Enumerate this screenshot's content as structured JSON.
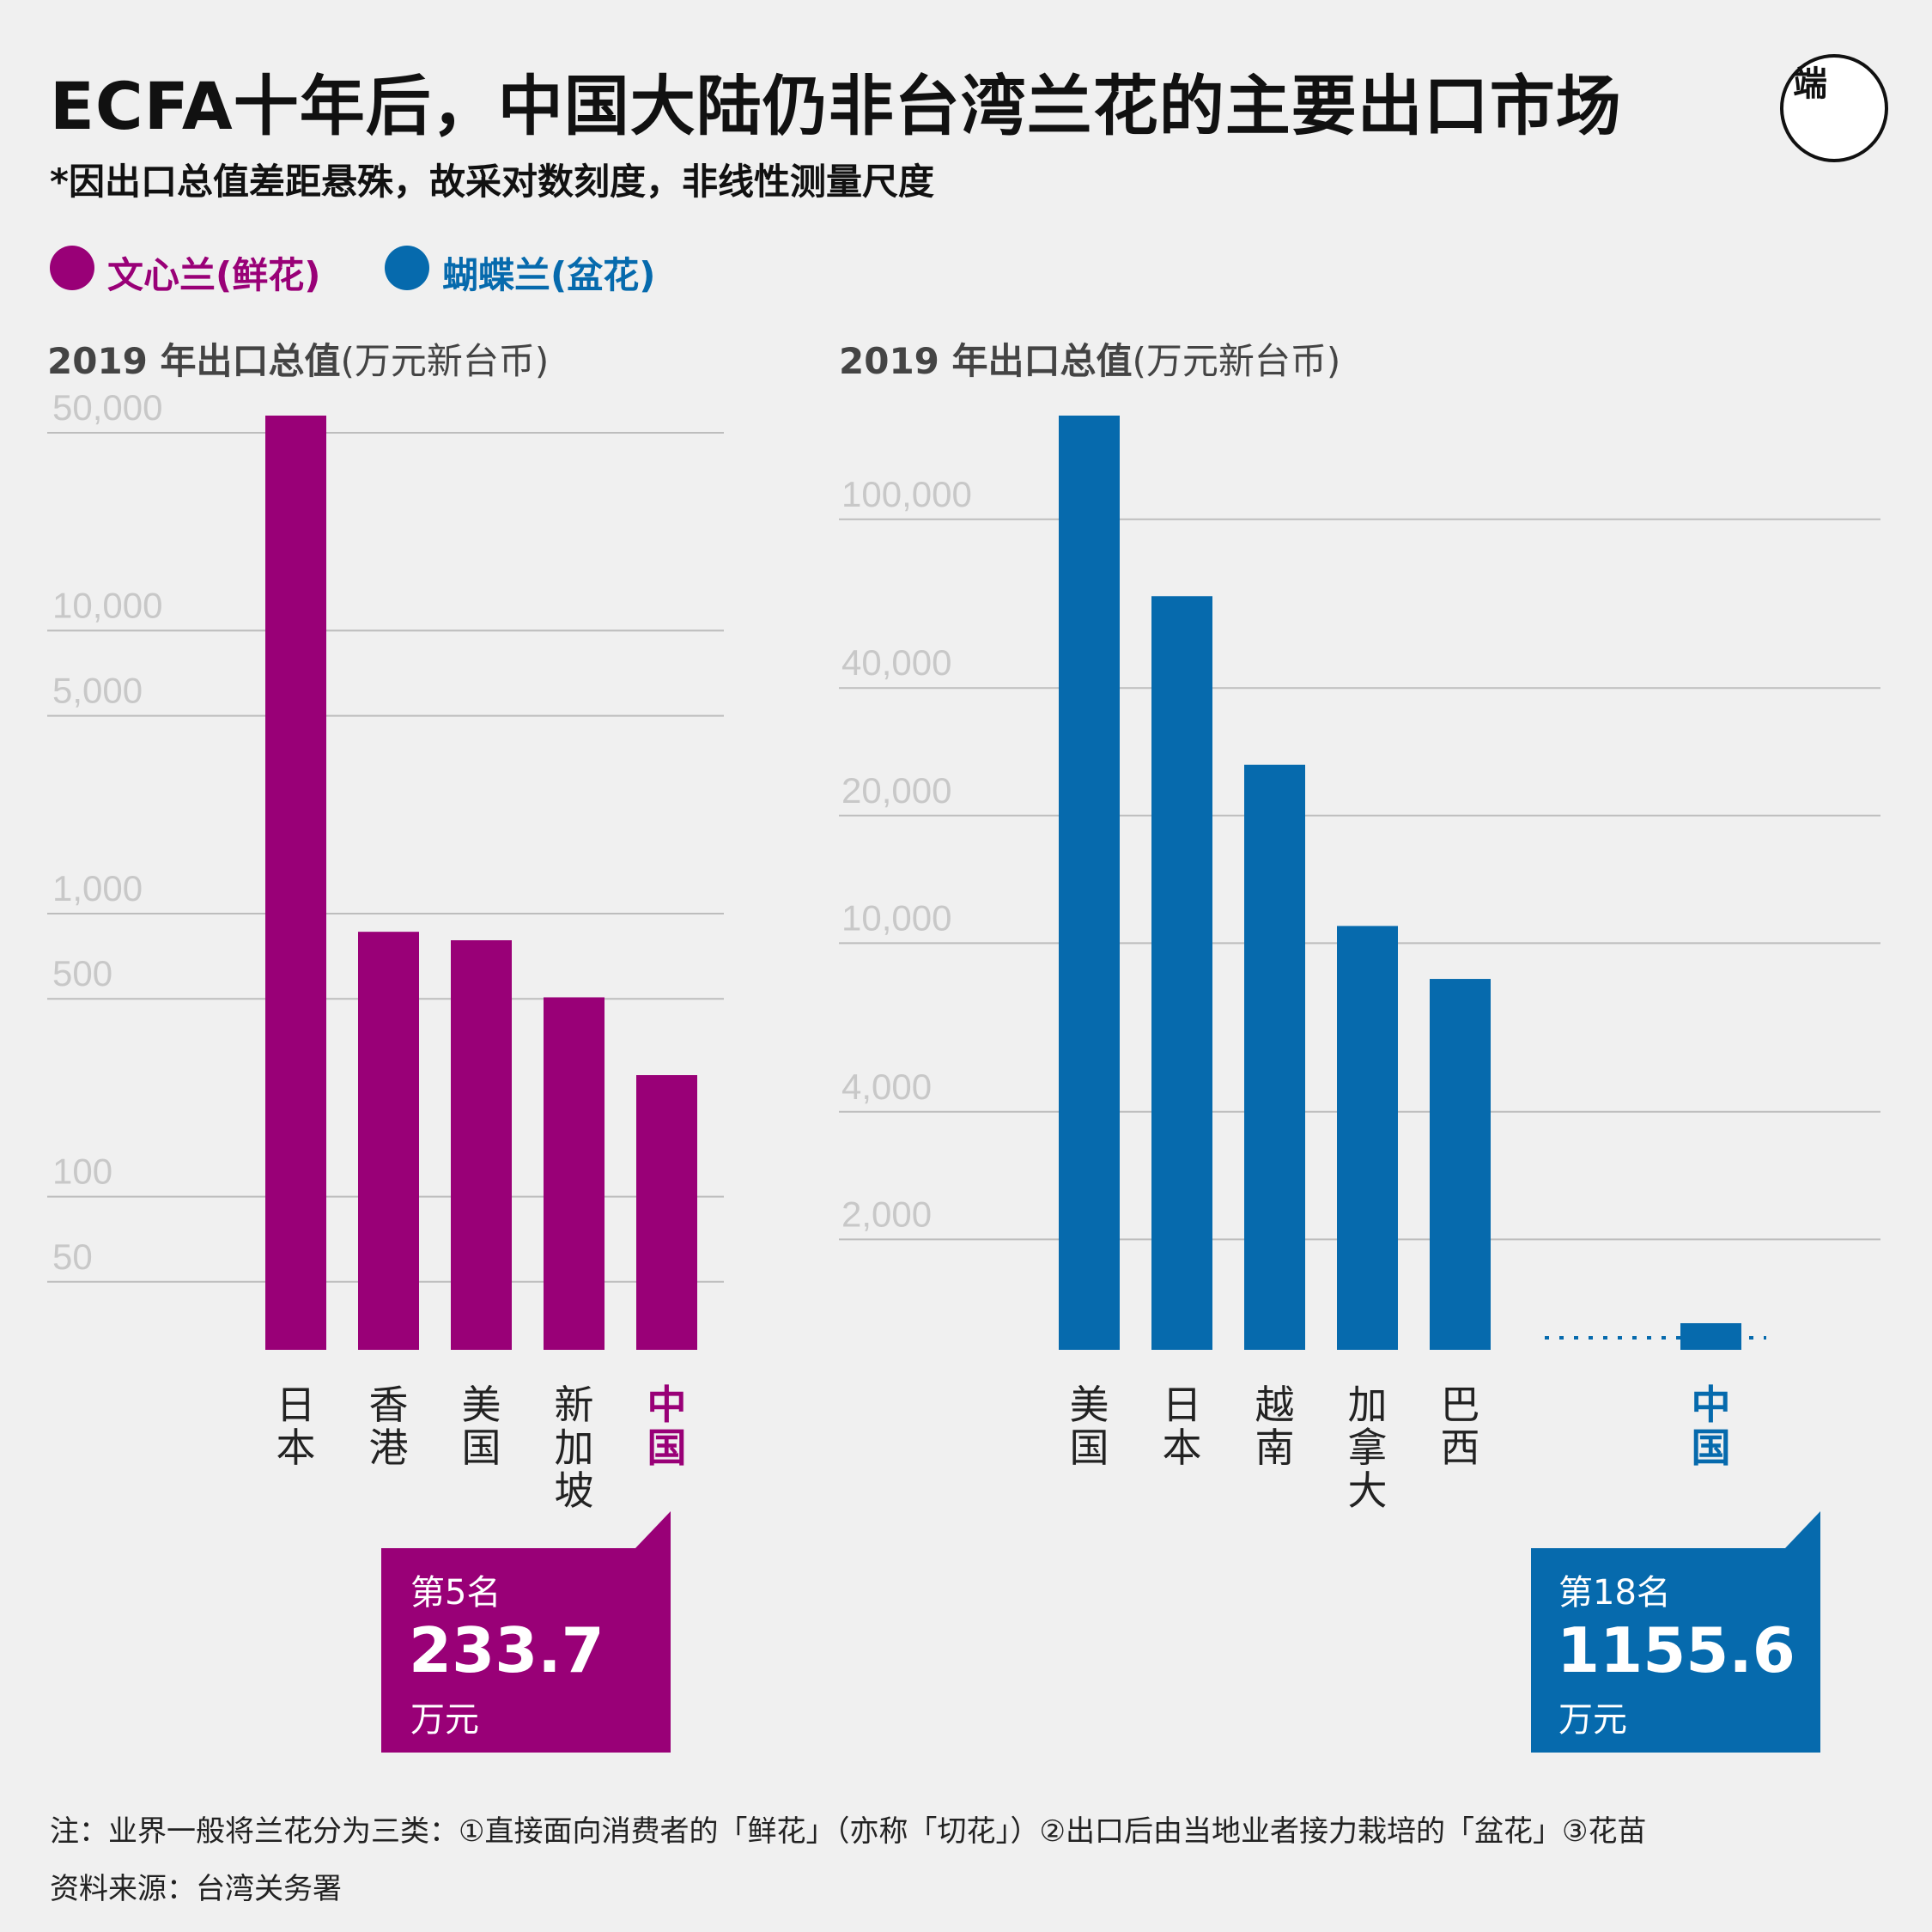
{
  "header": {
    "title": "ECFA十年后，中国大陆仍非台湾兰花的主要出口市场",
    "subtitle": "*因出口总值差距悬殊，故采对数刻度，非线性测量尺度",
    "logo_text": "端"
  },
  "legend": [
    {
      "label": "文心兰(鲜花)",
      "color": "#990077"
    },
    {
      "label": "蝴蝶兰(盆花)",
      "color": "#066aad"
    }
  ],
  "colors": {
    "oncidium": "#990077",
    "phalaenopsis": "#066aad",
    "background": "#f0f0f0",
    "grid": "#bdbdbd",
    "tick_text": "#c8c8c8"
  },
  "chart_data": [
    {
      "type": "bar",
      "scale": "log",
      "series_name": "文心兰(鲜花)",
      "ylabel_bold": "2019 年出口总值",
      "ylabel_unit": "(万元新台币)",
      "ticks": [
        50,
        100,
        500,
        1000,
        5000,
        10000,
        50000
      ],
      "tick_labels": [
        "50",
        "100",
        "500",
        "1,000",
        "5,000",
        "10,000",
        "50,000"
      ],
      "ylim": [
        25,
        50000
      ],
      "categories": [
        "日本",
        "香港",
        "美国",
        "新加坡",
        "中国"
      ],
      "values": [
        50000,
        750,
        700,
        440,
        233.7
      ],
      "highlight": "中国",
      "callout": {
        "rank": "第5名",
        "value": "233.7",
        "unit": "万元"
      }
    },
    {
      "type": "bar",
      "scale": "log",
      "series_name": "蝴蝶兰(盆花)",
      "ylabel_bold": "2019 年出口总值",
      "ylabel_unit": "(万元新台币)",
      "ticks": [
        2000,
        4000,
        10000,
        20000,
        40000,
        100000
      ],
      "tick_labels": [
        "2,000",
        "4,000",
        "10,000",
        "20,000",
        "40,000",
        "100,000"
      ],
      "ylim": [
        1000,
        160000
      ],
      "categories": [
        "美国",
        "日本",
        "越南",
        "加拿大",
        "巴西",
        "中国"
      ],
      "values": [
        160000,
        60000,
        24000,
        10000,
        7500,
        1155.6
      ],
      "highlight": "中国",
      "gap_before_last": true,
      "callout": {
        "rank": "第18名",
        "value": "1155.6",
        "unit": "万元"
      }
    }
  ],
  "footer": {
    "note": "注：业界一般将兰花分为三类：①直接面向消费者的「鲜花」（亦称「切花」）②出口后由当地业者接力栽培的「盆花」③花苗",
    "source": "资料来源：台湾关务署"
  }
}
